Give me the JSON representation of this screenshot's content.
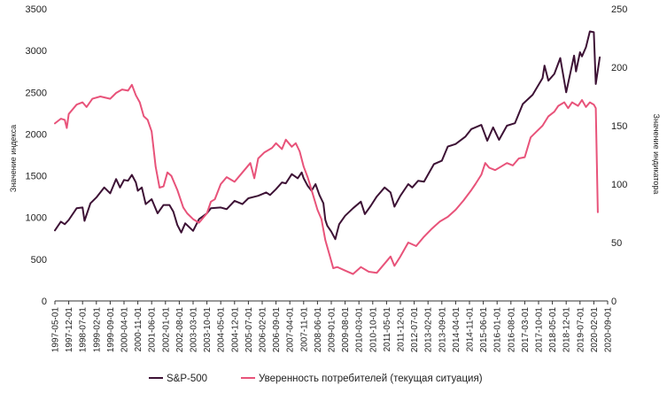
{
  "chart_data": {
    "type": "line",
    "dual_axis": true,
    "title": "",
    "ylabel_left": "Значение индекса",
    "ylabel_right": "Значение индикатора",
    "ylim_left": [
      0,
      3500
    ],
    "ylim_right": [
      0,
      250
    ],
    "yticks_left": [
      "0",
      "500",
      "1000",
      "1500",
      "2000",
      "2500",
      "3000",
      "3500"
    ],
    "yticks_right": [
      "0",
      "50",
      "100",
      "150",
      "200",
      "250"
    ],
    "x_start": "1997-05",
    "x_end": "2020-09",
    "xticks": [
      "1997-05-01",
      "1997-12-01",
      "1998-07-01",
      "1999-02-01",
      "1999-09-01",
      "2000-04-01",
      "2000-11-01",
      "2001-06-01",
      "2002-01-01",
      "2002-08-01",
      "2003-03-01",
      "2003-10-01",
      "2004-05-01",
      "2004-12-01",
      "2005-07-01",
      "2006-02-01",
      "2006-09-01",
      "2007-04-01",
      "2007-11-01",
      "2008-06-01",
      "2009-01-01",
      "2009-08-01",
      "2010-03-01",
      "2010-10-01",
      "2011-05-01",
      "2011-12-01",
      "2012-07-01",
      "2013-02-01",
      "2013-09-01",
      "2014-04-01",
      "2014-11-01",
      "2015-06-01",
      "2016-01-01",
      "2016-08-01",
      "2017-03-01",
      "2017-10-01",
      "2018-05-01",
      "2018-12-01",
      "2019-07-01",
      "2020-02-01",
      "2020-09-01"
    ],
    "grid": false,
    "legend_position": "bottom",
    "series": [
      {
        "name": "S&P-500",
        "axis": "left",
        "color": "#3d1235",
        "points": [
          [
            "1997-05",
            845
          ],
          [
            "1997-08",
            950
          ],
          [
            "1997-10",
            920
          ],
          [
            "1997-12",
            970
          ],
          [
            "1998-04",
            1110
          ],
          [
            "1998-07",
            1120
          ],
          [
            "1998-08",
            960
          ],
          [
            "1998-11",
            1170
          ],
          [
            "1999-02",
            1240
          ],
          [
            "1999-06",
            1360
          ],
          [
            "1999-09",
            1290
          ],
          [
            "1999-12",
            1460
          ],
          [
            "2000-02",
            1360
          ],
          [
            "2000-04",
            1450
          ],
          [
            "2000-06",
            1440
          ],
          [
            "2000-08",
            1510
          ],
          [
            "2000-10",
            1420
          ],
          [
            "2000-11",
            1320
          ],
          [
            "2001-01",
            1360
          ],
          [
            "2001-03",
            1160
          ],
          [
            "2001-06",
            1220
          ],
          [
            "2001-09",
            1050
          ],
          [
            "2001-12",
            1150
          ],
          [
            "2002-03",
            1150
          ],
          [
            "2002-05",
            1070
          ],
          [
            "2002-07",
            910
          ],
          [
            "2002-09",
            820
          ],
          [
            "2002-11",
            930
          ],
          [
            "2003-03",
            840
          ],
          [
            "2003-06",
            980
          ],
          [
            "2003-10",
            1050
          ],
          [
            "2003-12",
            1110
          ],
          [
            "2004-05",
            1120
          ],
          [
            "2004-08",
            1100
          ],
          [
            "2004-12",
            1200
          ],
          [
            "2005-04",
            1160
          ],
          [
            "2005-07",
            1230
          ],
          [
            "2005-12",
            1260
          ],
          [
            "2006-04",
            1300
          ],
          [
            "2006-06",
            1270
          ],
          [
            "2006-09",
            1340
          ],
          [
            "2006-12",
            1420
          ],
          [
            "2007-02",
            1410
          ],
          [
            "2007-05",
            1520
          ],
          [
            "2007-08",
            1470
          ],
          [
            "2007-10",
            1540
          ],
          [
            "2007-11",
            1470
          ],
          [
            "2008-01",
            1380
          ],
          [
            "2008-03",
            1320
          ],
          [
            "2008-05",
            1400
          ],
          [
            "2008-07",
            1270
          ],
          [
            "2008-09",
            1170
          ],
          [
            "2008-10",
            970
          ],
          [
            "2008-11",
            900
          ],
          [
            "2009-01",
            830
          ],
          [
            "2009-03",
            740
          ],
          [
            "2009-05",
            920
          ],
          [
            "2009-08",
            1020
          ],
          [
            "2009-12",
            1110
          ],
          [
            "2010-04",
            1190
          ],
          [
            "2010-06",
            1040
          ],
          [
            "2010-09",
            1140
          ],
          [
            "2010-12",
            1250
          ],
          [
            "2011-04",
            1360
          ],
          [
            "2011-07",
            1300
          ],
          [
            "2011-09",
            1130
          ],
          [
            "2011-12",
            1260
          ],
          [
            "2012-04",
            1400
          ],
          [
            "2012-06",
            1360
          ],
          [
            "2012-09",
            1440
          ],
          [
            "2012-12",
            1430
          ],
          [
            "2013-05",
            1640
          ],
          [
            "2013-09",
            1680
          ],
          [
            "2013-12",
            1850
          ],
          [
            "2014-04",
            1880
          ],
          [
            "2014-09",
            1970
          ],
          [
            "2014-12",
            2060
          ],
          [
            "2015-05",
            2110
          ],
          [
            "2015-08",
            1920
          ],
          [
            "2015-11",
            2080
          ],
          [
            "2016-02",
            1930
          ],
          [
            "2016-06",
            2100
          ],
          [
            "2016-10",
            2130
          ],
          [
            "2017-02",
            2360
          ],
          [
            "2017-07",
            2470
          ],
          [
            "2017-12",
            2670
          ],
          [
            "2018-01",
            2820
          ],
          [
            "2018-03",
            2640
          ],
          [
            "2018-06",
            2720
          ],
          [
            "2018-09",
            2910
          ],
          [
            "2018-12",
            2500
          ],
          [
            "2019-04",
            2940
          ],
          [
            "2019-05",
            2750
          ],
          [
            "2019-07",
            2980
          ],
          [
            "2019-08",
            2930
          ],
          [
            "2019-10",
            3040
          ],
          [
            "2019-12",
            3230
          ],
          [
            "2020-02",
            3220
          ],
          [
            "2020-03",
            2600
          ],
          [
            "2020-05",
            2920
          ]
        ]
      },
      {
        "name": "Уверенность потребителей (текущая ситуация)",
        "axis": "right",
        "color": "#e8537a",
        "points": [
          [
            "1997-05",
            152
          ],
          [
            "1997-08",
            156
          ],
          [
            "1997-10",
            155
          ],
          [
            "1997-11",
            148
          ],
          [
            "1997-12",
            160
          ],
          [
            "1998-04",
            168
          ],
          [
            "1998-07",
            170
          ],
          [
            "1998-09",
            166
          ],
          [
            "1998-12",
            173
          ],
          [
            "1999-04",
            175
          ],
          [
            "1999-09",
            173
          ],
          [
            "1999-12",
            178
          ],
          [
            "2000-03",
            181
          ],
          [
            "2000-06",
            180
          ],
          [
            "2000-08",
            185
          ],
          [
            "2000-10",
            176
          ],
          [
            "2000-12",
            170
          ],
          [
            "2001-02",
            158
          ],
          [
            "2001-04",
            155
          ],
          [
            "2001-06",
            145
          ],
          [
            "2001-08",
            115
          ],
          [
            "2001-10",
            97
          ],
          [
            "2001-12",
            98
          ],
          [
            "2002-02",
            110
          ],
          [
            "2002-04",
            107
          ],
          [
            "2002-07",
            95
          ],
          [
            "2002-10",
            80
          ],
          [
            "2002-12",
            75
          ],
          [
            "2003-03",
            70
          ],
          [
            "2003-06",
            67
          ],
          [
            "2003-10",
            75
          ],
          [
            "2003-12",
            85
          ],
          [
            "2004-02",
            87
          ],
          [
            "2004-05",
            100
          ],
          [
            "2004-08",
            106
          ],
          [
            "2004-12",
            102
          ],
          [
            "2005-04",
            110
          ],
          [
            "2005-08",
            118
          ],
          [
            "2005-10",
            105
          ],
          [
            "2005-12",
            122
          ],
          [
            "2006-03",
            127
          ],
          [
            "2006-07",
            131
          ],
          [
            "2006-09",
            135
          ],
          [
            "2006-12",
            130
          ],
          [
            "2007-02",
            138
          ],
          [
            "2007-05",
            132
          ],
          [
            "2007-07",
            135
          ],
          [
            "2007-09",
            128
          ],
          [
            "2007-11",
            115
          ],
          [
            "2008-01",
            106
          ],
          [
            "2008-03",
            95
          ],
          [
            "2008-06",
            78
          ],
          [
            "2008-08",
            70
          ],
          [
            "2008-10",
            52
          ],
          [
            "2008-12",
            40
          ],
          [
            "2009-02",
            28
          ],
          [
            "2009-04",
            29
          ],
          [
            "2009-08",
            26
          ],
          [
            "2009-12",
            23
          ],
          [
            "2010-04",
            29
          ],
          [
            "2010-08",
            25
          ],
          [
            "2010-12",
            24
          ],
          [
            "2011-04",
            32
          ],
          [
            "2011-07",
            38
          ],
          [
            "2011-09",
            30
          ],
          [
            "2011-12",
            38
          ],
          [
            "2012-04",
            50
          ],
          [
            "2012-08",
            47
          ],
          [
            "2012-12",
            55
          ],
          [
            "2013-04",
            62
          ],
          [
            "2013-08",
            68
          ],
          [
            "2013-12",
            72
          ],
          [
            "2014-04",
            78
          ],
          [
            "2014-08",
            86
          ],
          [
            "2014-12",
            95
          ],
          [
            "2015-02",
            100
          ],
          [
            "2015-05",
            108
          ],
          [
            "2015-07",
            118
          ],
          [
            "2015-09",
            114
          ],
          [
            "2015-12",
            112
          ],
          [
            "2016-03",
            115
          ],
          [
            "2016-06",
            118
          ],
          [
            "2016-09",
            116
          ],
          [
            "2016-12",
            122
          ],
          [
            "2017-03",
            123
          ],
          [
            "2017-06",
            140
          ],
          [
            "2017-09",
            145
          ],
          [
            "2017-12",
            150
          ],
          [
            "2018-03",
            158
          ],
          [
            "2018-06",
            162
          ],
          [
            "2018-08",
            167
          ],
          [
            "2018-11",
            170
          ],
          [
            "2019-01",
            165
          ],
          [
            "2019-03",
            170
          ],
          [
            "2019-06",
            167
          ],
          [
            "2019-08",
            172
          ],
          [
            "2019-10",
            166
          ],
          [
            "2019-12",
            170
          ],
          [
            "2020-02",
            168
          ],
          [
            "2020-03",
            165
          ],
          [
            "2020-04",
            76
          ]
        ]
      }
    ]
  }
}
